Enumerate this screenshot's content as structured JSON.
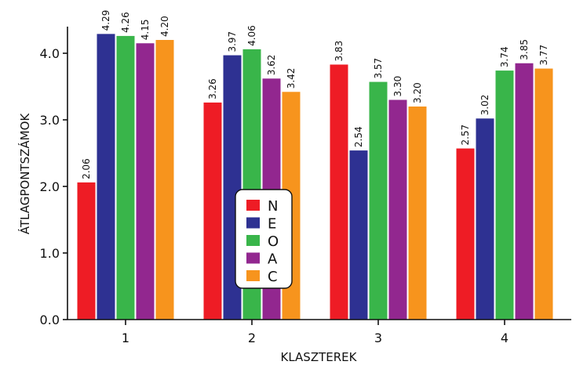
{
  "chart_data": {
    "type": "bar",
    "title": "",
    "xlabel": "KLASZTEREK",
    "ylabel": "ÁTLAGPONTSZÁMOK",
    "ylim": [
      0,
      4.5
    ],
    "yticks": [
      0.0,
      1.0,
      2.0,
      3.0,
      4.0
    ],
    "ytick_labels": [
      "0.0",
      "1.0",
      "2.0",
      "3.0",
      "4.0"
    ],
    "grid": false,
    "legend_position": "center",
    "categories": [
      "1",
      "2",
      "3",
      "4"
    ],
    "series": [
      {
        "name": "N",
        "color": "#ee1c25",
        "values": [
          2.06,
          3.26,
          3.83,
          2.57
        ],
        "labels": [
          "2.06",
          "3.26",
          "3.83",
          "2.57"
        ]
      },
      {
        "name": "E",
        "color": "#2e3192",
        "values": [
          4.29,
          3.97,
          2.54,
          3.02
        ],
        "labels": [
          "4.29",
          "3.97",
          "2.54",
          "3.02"
        ]
      },
      {
        "name": "O",
        "color": "#39b54a",
        "values": [
          4.26,
          4.06,
          3.57,
          3.74
        ],
        "labels": [
          "4.26",
          "4.06",
          "3.57",
          "3.74"
        ]
      },
      {
        "name": "A",
        "color": "#92278f",
        "values": [
          4.15,
          3.62,
          3.3,
          3.85
        ],
        "labels": [
          "4.15",
          "3.62",
          "3.30",
          "3.85"
        ]
      },
      {
        "name": "C",
        "color": "#f7941d",
        "values": [
          4.2,
          3.42,
          3.2,
          3.77
        ],
        "labels": [
          "4.20",
          "3.42",
          "3.20",
          "3.77"
        ]
      }
    ]
  }
}
